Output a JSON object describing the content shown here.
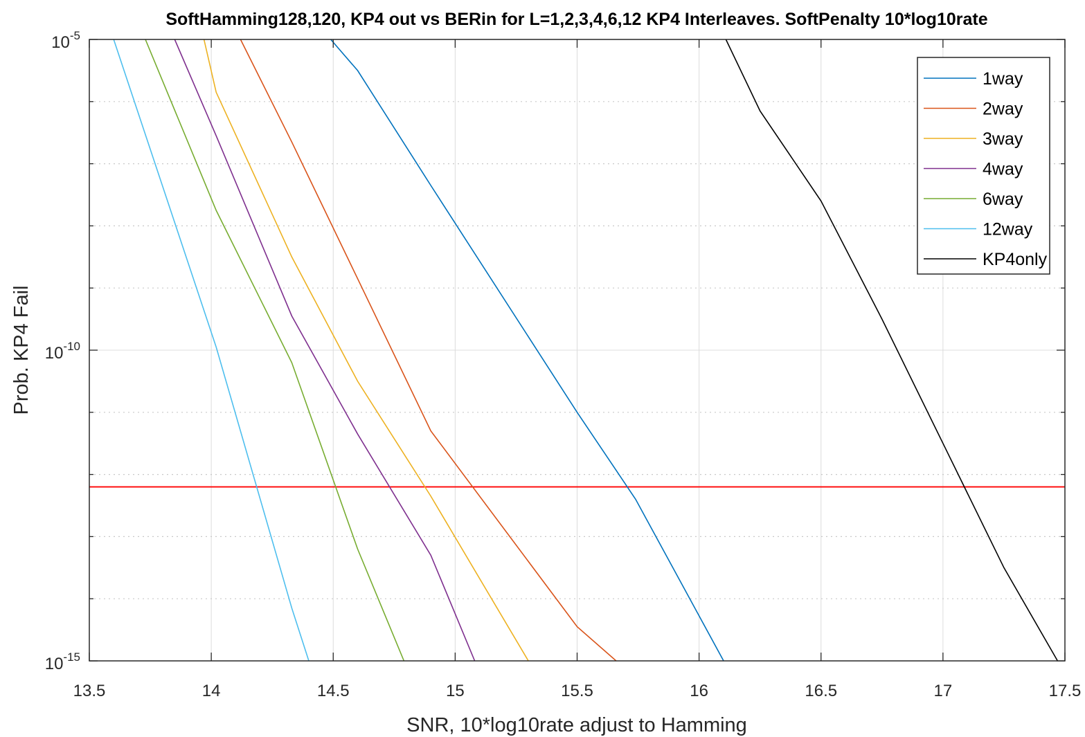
{
  "chart_data": {
    "type": "line",
    "title": "SoftHamming128,120, KP4 out vs BERin for L=1,2,3,4,6,12 KP4 Interleaves. SoftPenalty 10*log10rate",
    "xlabel": "SNR, 10*log10rate adjust to Hamming",
    "ylabel": "Prob. KP4 Fail",
    "xlim": [
      13.5,
      17.5
    ],
    "ylim_log10": [
      -15,
      -5
    ],
    "y_scale": "log",
    "x_ticks": [
      "13.5",
      "14",
      "14.5",
      "15",
      "15.5",
      "16",
      "16.5",
      "17",
      "17.5"
    ],
    "y_ticks": [
      {
        "base": "10",
        "exp": "-5"
      },
      {
        "base": "10",
        "exp": "-10"
      },
      {
        "base": "10",
        "exp": "-15"
      }
    ],
    "grid": true,
    "legend_position": "top-right",
    "threshold": {
      "log10_value": -12.2,
      "color": "#ff0000"
    },
    "series": [
      {
        "name": "1way",
        "color": "#0072bd",
        "x": [
          14.49,
          14.6,
          14.9,
          15.5,
          15.74,
          16.17
        ],
        "log10_y": [
          -5.0,
          -5.5,
          -7.35,
          -11.0,
          -12.4,
          -15.5
        ]
      },
      {
        "name": "2way",
        "color": "#d95319",
        "x": [
          14.12,
          14.33,
          14.6,
          14.9,
          15.5,
          15.66
        ],
        "log10_y": [
          -5.0,
          -6.65,
          -8.85,
          -11.3,
          -14.45,
          -15.0
        ]
      },
      {
        "name": "3way",
        "color": "#edb120",
        "x": [
          13.97,
          14.02,
          14.33,
          14.6,
          14.9,
          15.3
        ],
        "log10_y": [
          -5.0,
          -5.85,
          -8.5,
          -10.5,
          -12.35,
          -15.0
        ]
      },
      {
        "name": "4way",
        "color": "#7e2f8e",
        "x": [
          13.85,
          14.02,
          14.33,
          14.6,
          14.9,
          15.08
        ],
        "log10_y": [
          -5.0,
          -6.55,
          -9.45,
          -11.35,
          -13.3,
          -15.0
        ]
      },
      {
        "name": "6way",
        "color": "#77ac30",
        "x": [
          13.73,
          14.02,
          14.33,
          14.6,
          14.79
        ],
        "log10_y": [
          -5.0,
          -7.75,
          -10.2,
          -13.2,
          -15.0
        ]
      },
      {
        "name": "12way",
        "color": "#4dbeee",
        "x": [
          13.6,
          14.02,
          14.33,
          14.4
        ],
        "log10_y": [
          -5.0,
          -9.95,
          -14.15,
          -15.0
        ]
      },
      {
        "name": "KP4only",
        "color": "#000000",
        "x": [
          16.11,
          16.25,
          16.5,
          16.75,
          17.0,
          17.25,
          17.47
        ],
        "log10_y": [
          -5.0,
          -6.15,
          -7.6,
          -9.5,
          -11.5,
          -13.5,
          -15.0
        ]
      }
    ]
  }
}
